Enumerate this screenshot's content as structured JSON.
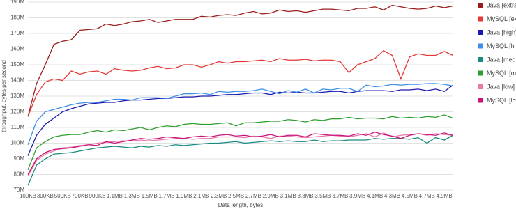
{
  "chart_data": {
    "type": "line",
    "x_label": "Data length, bytes",
    "y_label": "throughput, bytes per second",
    "categories": [
      "100KB",
      null,
      "300KB",
      null,
      "500KB",
      null,
      "700KB",
      null,
      "900KB",
      null,
      "1.1MB",
      null,
      "1.3MB",
      null,
      "1.5MB",
      null,
      "1.7MB",
      null,
      "1.9MB",
      null,
      "2.1MB",
      null,
      "2.3MB",
      null,
      "2.5MB",
      null,
      "2.7MB",
      null,
      "2.9MB",
      null,
      "3.1MB",
      null,
      "3.3MB",
      null,
      "3.5MB",
      null,
      "3.7MB",
      null,
      "3.9MB",
      null,
      "4.1MB",
      null,
      "4.3MB",
      null,
      "4.5MB",
      null,
      "4.7MB",
      null,
      "4.9MB",
      null
    ],
    "ylim": [
      70,
      190
    ],
    "yticks": [
      {
        "value": 70,
        "label": "70M"
      },
      {
        "value": 80,
        "label": "80M"
      },
      {
        "value": 90,
        "label": "90M"
      },
      {
        "value": 100,
        "label": "100M"
      },
      {
        "value": 110,
        "label": "110M"
      },
      {
        "value": 120,
        "label": "120M"
      },
      {
        "value": 130,
        "label": "130M"
      },
      {
        "value": 140,
        "label": "140M"
      },
      {
        "value": 150,
        "label": "150M"
      },
      {
        "value": 160,
        "label": "160M"
      },
      {
        "value": 170,
        "label": "170M"
      },
      {
        "value": 180,
        "label": "180M"
      },
      {
        "value": 190,
        "label": "190M"
      }
    ],
    "grid": true,
    "legend": "right",
    "series": [
      {
        "name": "Java [extra]",
        "color": "#9b1c1c",
        "values": [
          117,
          138,
          150,
          163,
          165,
          166,
          172,
          172.5,
          173,
          176,
          175,
          176,
          177.5,
          178,
          179,
          177,
          178,
          179,
          179,
          179,
          181,
          180.5,
          181.5,
          182,
          181.5,
          183,
          184,
          182.5,
          183,
          185,
          184,
          184.5,
          183.5,
          184.5,
          185.5,
          185.5,
          185,
          184.5,
          186,
          186,
          187,
          185,
          188,
          187,
          186,
          185.5,
          186,
          187.5,
          186.5,
          187.5
        ]
      },
      {
        "name": "MySQL [extra]",
        "color": "#e53935",
        "values": [
          117,
          131,
          139,
          141,
          140,
          146,
          144,
          145.5,
          146,
          144,
          147.5,
          146.5,
          146,
          146.5,
          148,
          149,
          147.5,
          148,
          150,
          150,
          148.5,
          150,
          152,
          151,
          152,
          152,
          152.5,
          153,
          152,
          154,
          153,
          153,
          153.5,
          152.5,
          153,
          153,
          152,
          145,
          150,
          152,
          154,
          159,
          156,
          141,
          155,
          157,
          156,
          156,
          158.5,
          156
        ]
      },
      {
        "name": "Java [high]",
        "color": "#1a1ab0",
        "values": [
          92,
          105,
          112,
          116,
          120,
          122,
          123.5,
          125,
          125.5,
          126,
          126,
          127,
          127.5,
          127.5,
          128,
          128.5,
          128.5,
          129,
          129.5,
          129.5,
          130,
          130,
          130.5,
          131,
          131,
          131.5,
          132,
          132,
          131,
          132.5,
          132,
          132.5,
          132,
          132,
          132.5,
          133,
          133,
          132,
          133,
          133.5,
          133.5,
          133.5,
          133,
          134,
          134,
          134.5,
          133.5,
          134.5,
          133,
          137
        ]
      },
      {
        "name": "MySQL [high]",
        "color": "#3d8ee8",
        "values": [
          99,
          114,
          120,
          121.5,
          123,
          124.5,
          125.5,
          126,
          126,
          127,
          128,
          128,
          127.5,
          129,
          129,
          129,
          128.5,
          130,
          131.5,
          131.5,
          132,
          131,
          133,
          132.5,
          133,
          133,
          133.5,
          134.5,
          133,
          131.5,
          133.5,
          132.5,
          134.5,
          132,
          134.5,
          134,
          135,
          135,
          133,
          137,
          136,
          136.5,
          137.5,
          137,
          137.5,
          137.5,
          138,
          138,
          137.5,
          136.5
        ]
      },
      {
        "name": "Java [medium]",
        "color": "#1a8a80",
        "values": [
          73,
          86,
          90,
          93,
          93.5,
          94,
          95,
          96,
          97,
          97.5,
          98,
          97.5,
          97,
          98,
          97.5,
          98.5,
          98,
          99,
          98.5,
          99,
          99.5,
          100,
          100,
          100.5,
          101,
          100,
          100.5,
          101,
          101.5,
          101,
          101.5,
          101,
          101,
          102,
          101,
          101.5,
          101.5,
          102,
          102,
          102,
          103,
          102.5,
          103,
          103,
          102.5,
          103.5,
          100,
          103.5,
          102,
          105
        ]
      },
      {
        "name": "MySQL [medium]",
        "color": "#2e9e2e",
        "values": [
          83,
          97,
          101,
          104,
          105,
          105.5,
          105.5,
          107,
          108,
          107,
          108.5,
          108,
          109,
          110,
          108.5,
          110,
          111,
          110.5,
          112,
          112.5,
          112,
          112,
          112.5,
          113,
          111,
          113,
          113,
          113.5,
          114,
          114,
          115,
          114.5,
          113.5,
          115,
          114.5,
          115.5,
          115.5,
          116.5,
          115.5,
          116,
          116,
          115.5,
          117,
          116,
          116.5,
          116,
          117,
          116.5,
          118,
          116
        ]
      },
      {
        "name": "Java [low]",
        "color": "#e87aa8",
        "values": [
          79,
          89,
          93,
          95,
          97,
          97.5,
          98.5,
          99,
          100,
          100.5,
          101,
          101.5,
          101.5,
          102,
          101.5,
          102,
          102.5,
          103,
          103,
          102.5,
          103,
          103,
          104,
          104,
          104,
          103.5,
          104.5,
          104,
          103,
          104.5,
          104.5,
          104,
          103.5,
          104,
          104.5,
          105,
          104.5,
          104,
          105,
          106,
          104,
          106.5,
          104,
          105,
          105.5,
          106,
          105,
          106,
          105.5,
          105
        ]
      },
      {
        "name": "MySQL [low]",
        "color": "#c8147a",
        "values": [
          80,
          90,
          94,
          96,
          96.5,
          97,
          98,
          99,
          98.5,
          101,
          100,
          101,
          102,
          103,
          102.5,
          103,
          104,
          103.5,
          103,
          104,
          104.5,
          104,
          105,
          105.5,
          104.5,
          105,
          104,
          104.5,
          105.5,
          104,
          105,
          105,
          104,
          106,
          105.5,
          105,
          105,
          104.5,
          106,
          105,
          107,
          105.5,
          104.5,
          103,
          105,
          106,
          105.5,
          105,
          106.5,
          105
        ]
      }
    ]
  }
}
